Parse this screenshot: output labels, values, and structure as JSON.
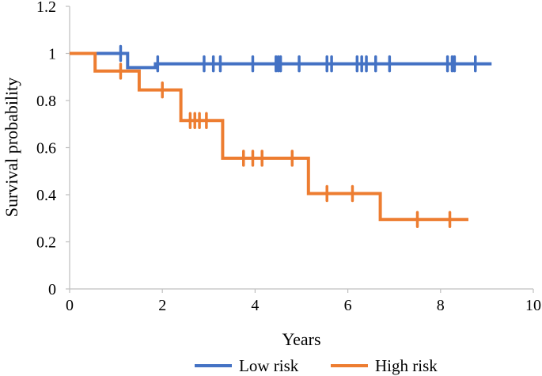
{
  "chart_data": {
    "type": "line",
    "step": true,
    "title": "",
    "xlabel": "Years",
    "ylabel": "Survival probability",
    "xlim": [
      0,
      10
    ],
    "ylim": [
      0,
      1.2
    ],
    "xticks": [
      0,
      2,
      4,
      6,
      8,
      10
    ],
    "yticks": [
      0,
      0.2,
      0.4,
      0.6,
      0.8,
      1,
      1.2
    ],
    "xtick_labels": [
      "0",
      "2",
      "4",
      "6",
      "8",
      "10"
    ],
    "ytick_labels": [
      "0",
      "0.2",
      "0.4",
      "0.6",
      "0.8",
      "1",
      "1.2"
    ],
    "grid": false,
    "legend_position": "bottom",
    "series": [
      {
        "name": "Low risk",
        "color": "#4472C4",
        "points": [
          [
            0.0,
            1.0
          ],
          [
            1.25,
            1.0
          ],
          [
            1.25,
            0.94
          ],
          [
            1.85,
            0.94
          ],
          [
            1.85,
            0.956
          ],
          [
            9.1,
            0.956
          ]
        ],
        "censor_times": [
          1.1,
          1.9,
          2.9,
          3.1,
          3.25,
          3.95,
          4.45,
          4.5,
          4.55,
          4.95,
          5.55,
          5.65,
          6.2,
          6.3,
          6.4,
          6.6,
          6.9,
          8.15,
          8.25,
          8.3,
          8.75
        ]
      },
      {
        "name": "High risk",
        "color": "#ED7D31",
        "points": [
          [
            0.0,
            1.0
          ],
          [
            0.55,
            1.0
          ],
          [
            0.55,
            0.925
          ],
          [
            1.5,
            0.925
          ],
          [
            1.5,
            0.845
          ],
          [
            2.4,
            0.845
          ],
          [
            2.4,
            0.715
          ],
          [
            3.3,
            0.715
          ],
          [
            3.3,
            0.555
          ],
          [
            5.15,
            0.555
          ],
          [
            5.15,
            0.405
          ],
          [
            6.7,
            0.405
          ],
          [
            6.7,
            0.295
          ],
          [
            8.6,
            0.295
          ]
        ],
        "censor_times": [
          1.1,
          2.0,
          2.6,
          2.7,
          2.8,
          2.95,
          3.75,
          3.95,
          4.15,
          4.8,
          5.55,
          6.1,
          7.5,
          8.2
        ]
      }
    ]
  }
}
